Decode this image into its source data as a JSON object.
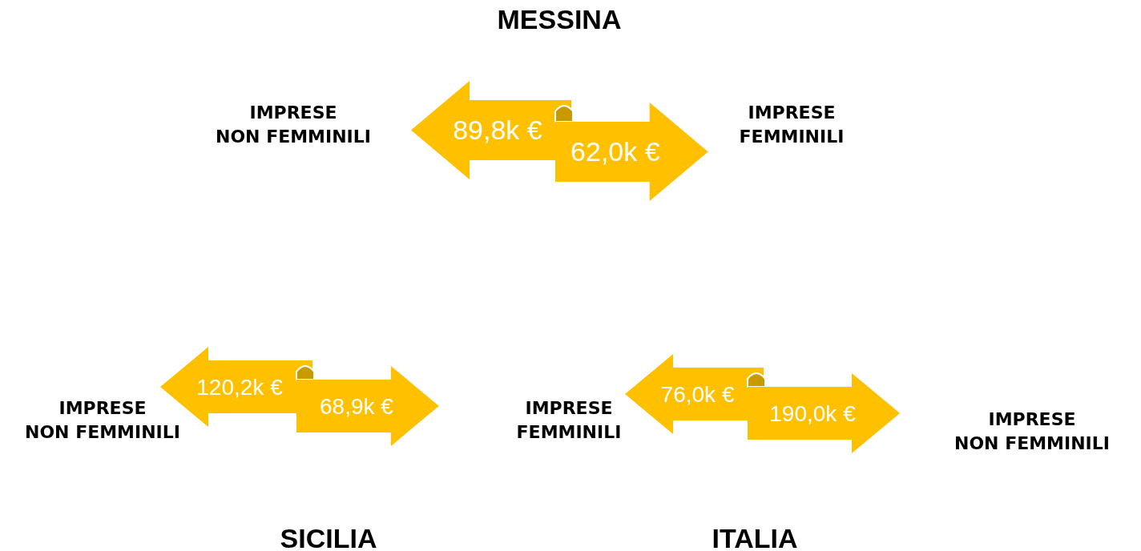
{
  "chart_data": [
    {
      "type": "other",
      "title": "MESSINA",
      "categories": [
        "IMPRESE NON FEMMINILI",
        "IMPRESE FEMMINILI"
      ],
      "values": [
        89.8,
        62.0
      ],
      "value_labels": [
        "89,8k €",
        "62,0k €"
      ],
      "color": "#ffc000"
    },
    {
      "type": "other",
      "title": "SICILIA",
      "categories": [
        "IMPRESE NON FEMMINILI",
        null
      ],
      "values": [
        120.2,
        68.9
      ],
      "value_labels": [
        "120,2k €",
        "68,9k €"
      ],
      "color": "#ffc000"
    },
    {
      "type": "other",
      "title": "ITALIA",
      "categories": [
        "IMPRESE FEMMINILI",
        "IMPRESE NON FEMMINILI"
      ],
      "values": [
        76.0,
        190.0
      ],
      "value_labels": [
        "76,0k €",
        "190,0k €"
      ],
      "color": "#ffc000"
    }
  ]
}
